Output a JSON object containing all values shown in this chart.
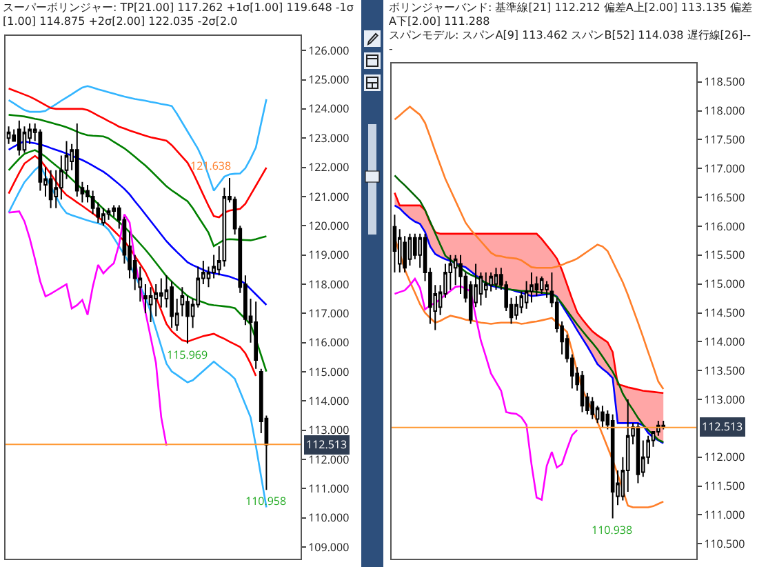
{
  "chart_data": [
    {
      "type": "candlestick",
      "title": "スーパーボリンジャー: TP[21.00] 117.262 +1σ[1.00] 119.648 -1σ[1.00] 114.875 +2σ[2.00] 122.035 -2σ[2.0",
      "categories": [
        null,
        null,
        null,
        null,
        null,
        null,
        null,
        null,
        null,
        null,
        null,
        null,
        null,
        null,
        null,
        null,
        null,
        null,
        null,
        null,
        null,
        null,
        null,
        null,
        null,
        null,
        null,
        null,
        null,
        null,
        null,
        null,
        null,
        null,
        null,
        null,
        null,
        null,
        null,
        null,
        null,
        null,
        null,
        null,
        null,
        null,
        null,
        null,
        null,
        null
      ],
      "ohlc": [
        [
          123.0,
          123.4,
          122.8,
          123.2
        ],
        [
          123.1,
          123.3,
          122.9,
          122.9
        ],
        [
          123.3,
          123.6,
          122.4,
          122.6
        ],
        [
          122.6,
          123.4,
          122.5,
          123.2
        ],
        [
          123.0,
          123.5,
          122.8,
          123.3
        ],
        [
          123.2,
          123.5,
          122.9,
          123.3
        ],
        [
          123.2,
          123.3,
          121.2,
          121.5
        ],
        [
          121.4,
          122.0,
          121.0,
          121.6
        ],
        [
          121.6,
          121.9,
          120.6,
          120.9
        ],
        [
          121.0,
          121.9,
          120.6,
          121.3
        ],
        [
          121.3,
          122.4,
          120.9,
          121.9
        ],
        [
          121.9,
          122.9,
          121.6,
          122.4
        ],
        [
          122.2,
          122.8,
          121.9,
          122.6
        ],
        [
          122.6,
          123.5,
          121.0,
          121.2
        ],
        [
          121.3,
          121.5,
          120.8,
          121.1
        ],
        [
          121.2,
          121.4,
          120.8,
          121.0
        ],
        [
          121.0,
          121.2,
          120.4,
          120.6
        ],
        [
          120.6,
          120.8,
          120.1,
          120.3
        ],
        [
          120.1,
          120.6,
          120.0,
          120.4
        ],
        [
          120.4,
          120.6,
          120.2,
          120.5
        ],
        [
          120.5,
          120.7,
          120.3,
          120.6
        ],
        [
          120.6,
          120.7,
          119.9,
          120.2
        ],
        [
          120.2,
          120.3,
          118.7,
          119.0
        ],
        [
          119.3,
          119.8,
          118.2,
          118.5
        ],
        [
          118.8,
          119.0,
          117.8,
          118.2
        ],
        [
          117.9,
          118.6,
          117.4,
          118.2
        ],
        [
          117.6,
          118.0,
          117.0,
          117.5
        ],
        [
          117.3,
          117.9,
          116.7,
          117.6
        ],
        [
          117.5,
          118.0,
          116.9,
          117.7
        ],
        [
          117.6,
          118.2,
          117.2,
          117.7
        ],
        [
          117.5,
          118.3,
          117.2,
          117.8
        ],
        [
          117.9,
          118.1,
          116.5,
          116.9
        ],
        [
          116.6,
          117.5,
          116.4,
          117.0
        ],
        [
          117.3,
          117.9,
          116.9,
          117.6
        ],
        [
          117.4,
          117.6,
          115.969,
          116.9
        ],
        [
          116.9,
          117.5,
          116.5,
          117.3
        ],
        [
          117.3,
          118.6,
          117.2,
          118.2
        ],
        [
          118.2,
          118.8,
          118.0,
          118.4
        ],
        [
          118.2,
          118.6,
          117.9,
          118.4
        ],
        [
          118.4,
          119.0,
          118.2,
          118.6
        ],
        [
          118.5,
          119.3,
          118.3,
          118.8
        ],
        [
          118.8,
          121.3,
          118.6,
          121.0
        ],
        [
          121.0,
          121.638,
          120.8,
          120.9
        ],
        [
          120.9,
          121.0,
          119.7,
          119.9
        ],
        [
          119.9,
          120.0,
          117.7,
          117.9
        ],
        [
          118.0,
          118.3,
          116.6,
          116.8
        ],
        [
          116.9,
          117.5,
          116.0,
          116.7
        ],
        [
          116.7,
          117.4,
          115.1,
          115.4
        ],
        [
          115.0,
          115.1,
          112.9,
          113.3
        ],
        [
          113.4,
          113.5,
          110.958,
          112.5
        ]
      ],
      "series": [
        {
          "type": "line",
          "color": "#33b5ff",
          "values": [
            124.3,
            124.19,
            124.07,
            123.96,
            123.9,
            123.9,
            123.9,
            123.93,
            124.05,
            124.16,
            124.28,
            124.39,
            124.5,
            124.62,
            124.73,
            124.78,
            124.73,
            124.67,
            124.62,
            124.57,
            124.52,
            124.47,
            124.42,
            124.38,
            124.34,
            124.31,
            124.28,
            124.24,
            124.21,
            124.17,
            124.14,
            124.1,
            123.83,
            123.53,
            123.23,
            122.93,
            122.63,
            122.24,
            121.72,
            121.2,
            121.44,
            121.68,
            121.76,
            121.78,
            121.79,
            121.97,
            122.3,
            122.68,
            123.51,
            124.33
          ]
        },
        {
          "type": "line",
          "color": "#ff0000",
          "values": [
            124.7,
            124.63,
            124.56,
            124.49,
            124.42,
            124.33,
            124.23,
            124.13,
            124.03,
            124.0,
            124.0,
            124.0,
            124.0,
            124.0,
            124.0,
            123.96,
            123.87,
            123.77,
            123.68,
            123.58,
            123.49,
            123.39,
            123.33,
            123.26,
            123.2,
            123.14,
            123.08,
            123.03,
            122.99,
            122.95,
            122.91,
            122.76,
            122.56,
            122.36,
            122.16,
            121.83,
            121.45,
            121.06,
            120.68,
            120.33,
            120.29,
            120.45,
            120.52,
            120.55,
            120.58,
            120.75,
            121.06,
            121.37,
            121.68,
            121.99
          ]
        },
        {
          "type": "line",
          "color": "#008000",
          "values": [
            123.8,
            123.78,
            123.76,
            123.74,
            123.7,
            123.66,
            123.63,
            123.58,
            123.53,
            123.48,
            123.43,
            123.37,
            123.3,
            123.22,
            123.15,
            123.1,
            123.08,
            123.07,
            123.06,
            122.99,
            122.87,
            122.76,
            122.65,
            122.51,
            122.36,
            122.21,
            122.06,
            121.89,
            121.71,
            121.53,
            121.35,
            121.21,
            121.09,
            120.96,
            120.84,
            120.6,
            120.32,
            120.04,
            119.76,
            119.3,
            119.41,
            119.52,
            119.54,
            119.53,
            119.52,
            119.51,
            119.5,
            119.54,
            119.59,
            119.64
          ]
        },
        {
          "type": "line",
          "color": "#0000ff",
          "values": [
            122.6,
            122.71,
            122.81,
            122.89,
            122.85,
            122.82,
            122.78,
            122.73,
            122.66,
            122.6,
            122.54,
            122.47,
            122.4,
            122.32,
            122.25,
            122.16,
            122.06,
            121.95,
            121.85,
            121.72,
            121.57,
            121.42,
            121.26,
            121.07,
            120.84,
            120.62,
            120.39,
            120.16,
            119.93,
            119.7,
            119.47,
            119.28,
            119.1,
            118.93,
            118.75,
            118.65,
            118.57,
            118.49,
            118.42,
            118.37,
            118.34,
            118.3,
            118.26,
            118.19,
            118.13,
            118.01,
            117.83,
            117.65,
            117.47,
            117.29
          ]
        },
        {
          "type": "line",
          "color": "#008000",
          "values": [
            121.9,
            122.1,
            122.29,
            122.46,
            122.53,
            122.59,
            122.49,
            122.36,
            122.21,
            122.06,
            121.92,
            121.76,
            121.59,
            121.42,
            121.25,
            121.08,
            120.92,
            120.75,
            120.58,
            120.42,
            120.27,
            120.12,
            119.96,
            119.78,
            119.58,
            119.38,
            119.18,
            118.96,
            118.73,
            118.5,
            118.27,
            118.09,
            117.92,
            117.76,
            117.6,
            117.5,
            117.44,
            117.38,
            117.31,
            117.28,
            117.26,
            117.24,
            117.22,
            117.18,
            116.99,
            116.81,
            116.62,
            116.11,
            115.56,
            115.01
          ]
        },
        {
          "type": "line",
          "color": "#ff0000",
          "values": [
            121.1,
            121.46,
            121.81,
            122.13,
            122.26,
            122.39,
            122.25,
            122.02,
            121.77,
            121.51,
            121.25,
            121.05,
            120.93,
            120.8,
            120.68,
            120.55,
            120.42,
            120.29,
            120.16,
            120.01,
            119.83,
            119.65,
            119.47,
            119.24,
            118.96,
            118.69,
            118.41,
            118.02,
            117.56,
            117.1,
            116.64,
            116.39,
            116.23,
            116.08,
            116.03,
            116.1,
            116.16,
            116.22,
            116.26,
            116.3,
            116.21,
            116.13,
            116.03,
            115.94,
            115.85,
            115.63,
            115.28,
            114.86,
            null,
            null
          ]
        },
        {
          "type": "line",
          "color": "#33b5ff",
          "values": [
            120.45,
            120.81,
            121.16,
            121.49,
            121.7,
            121.91,
            122.06,
            121.7,
            121.35,
            121.0,
            120.66,
            120.43,
            120.36,
            120.3,
            120.24,
            120.18,
            120.13,
            120.08,
            120.03,
            119.86,
            119.58,
            119.29,
            119.01,
            118.68,
            118.3,
            117.93,
            117.55,
            117.05,
            116.46,
            115.87,
            115.28,
            115.01,
            114.89,
            114.76,
            114.64,
            114.71,
            114.87,
            115.03,
            115.19,
            115.35,
            115.2,
            115.06,
            114.93,
            114.76,
            114.32,
            113.88,
            113.44,
            112.46,
            111.41,
            110.36
          ]
        },
        {
          "type": "line",
          "color": "#ff00ff",
          "values": [
            120.45,
            120.47,
            120.49,
            120.15,
            119.57,
            118.86,
            118.09,
            117.58,
            117.67,
            117.78,
            117.89,
            118.0,
            117.17,
            117.28,
            117.46,
            116.95,
            117.92,
            118.66,
            118.37,
            118.56,
            118.72,
            119.37,
            120.39,
            120.11,
            118.8,
            117.93,
            117.05,
            116.18,
            115.3,
            113.45,
            112.47,
            null,
            null,
            null,
            null,
            null,
            null,
            null,
            null,
            null,
            null,
            null,
            null,
            null,
            null,
            null,
            null,
            null,
            null,
            null
          ]
        }
      ],
      "ylim": [
        108.6,
        126.5
      ],
      "yticks": [
        {
          "value": 109,
          "label": "109.000"
        },
        {
          "value": 110,
          "label": "110.000"
        },
        {
          "value": 111,
          "label": "111.000"
        },
        {
          "value": 112,
          "label": "112.000"
        },
        {
          "value": 113,
          "label": "113.000"
        },
        {
          "value": 114,
          "label": "114.000"
        },
        {
          "value": 115,
          "label": "115.000"
        },
        {
          "value": 116,
          "label": "116.000"
        },
        {
          "value": 117,
          "label": "117.000"
        },
        {
          "value": 118,
          "label": "118.000"
        },
        {
          "value": 119,
          "label": "119.000"
        },
        {
          "value": 120,
          "label": "120.000"
        },
        {
          "value": 121,
          "label": "121.000"
        },
        {
          "value": 122,
          "label": "122.000"
        },
        {
          "value": 123,
          "label": "123.000"
        },
        {
          "value": 124,
          "label": "124.000"
        },
        {
          "value": 125,
          "label": "125.000"
        },
        {
          "value": 126,
          "label": "126.000"
        }
      ],
      "ref_lines": [
        {
          "axis": "y",
          "value": 112.513,
          "label": "112.513",
          "color": "#ff9933"
        }
      ],
      "annotations": [
        {
          "text": "121.638",
          "y": 121.638
        },
        {
          "text": "115.969",
          "y": 115.969
        },
        {
          "text": "110.958",
          "y": 110.958
        }
      ],
      "tick_labels": "y",
      "grid": false
    },
    {
      "type": "candlestick",
      "title": "ボリンジャーバンド: 基準線[21] 112.212 偏差A上[2.00] 113.135 偏差A下[2.00] 111.288",
      "subtitle": "スパンモデル: スパンA[9] 113.462 スパンB[52] 114.038 遅行線[26]---",
      "categories": [
        null,
        null,
        null,
        null,
        null,
        null,
        null,
        null,
        null,
        null,
        null,
        null,
        null,
        null,
        null,
        null,
        null,
        null,
        null,
        null,
        null,
        null,
        null,
        null,
        null,
        null,
        null,
        null,
        null,
        null,
        null,
        null,
        null,
        null,
        null,
        null,
        null,
        null,
        null,
        null,
        null,
        null,
        null,
        null,
        null,
        null,
        null,
        null,
        null,
        null,
        null,
        null,
        null,
        null
      ],
      "ohlc": [
        [
          115.99,
          116.2,
          115.2,
          115.57
        ],
        [
          115.35,
          115.95,
          115.2,
          115.8
        ],
        [
          115.72,
          115.83,
          115.2,
          115.28
        ],
        [
          115.43,
          115.87,
          115.32,
          115.8
        ],
        [
          115.8,
          115.87,
          115.43,
          115.5
        ],
        [
          115.5,
          115.87,
          115.28,
          115.8
        ],
        [
          115.8,
          115.87,
          115.05,
          115.2
        ],
        [
          115.2,
          115.28,
          114.31,
          114.6
        ],
        [
          114.53,
          114.98,
          114.2,
          114.83
        ],
        [
          114.6,
          114.98,
          114.46,
          114.86
        ],
        [
          114.83,
          115.35,
          114.76,
          115.2
        ],
        [
          115.2,
          115.5,
          114.9,
          115.35
        ],
        [
          115.28,
          115.5,
          114.98,
          115.43
        ],
        [
          115.35,
          115.5,
          114.83,
          115.13
        ],
        [
          115.13,
          115.2,
          114.68,
          114.76
        ],
        [
          114.98,
          115.05,
          114.31,
          114.38
        ],
        [
          114.68,
          115.35,
          114.6,
          114.98
        ],
        [
          114.83,
          115.2,
          114.63,
          115.13
        ],
        [
          114.9,
          115.2,
          114.76,
          115.0
        ],
        [
          114.98,
          115.2,
          114.87,
          115.13
        ],
        [
          115.0,
          115.28,
          114.9,
          115.16
        ],
        [
          115.16,
          115.28,
          114.9,
          114.98
        ],
        [
          114.98,
          115.05,
          114.53,
          114.6
        ],
        [
          114.64,
          114.76,
          114.31,
          114.42
        ],
        [
          114.46,
          114.79,
          114.38,
          114.64
        ],
        [
          114.6,
          114.87,
          114.49,
          114.79
        ],
        [
          114.68,
          115.05,
          114.57,
          114.87
        ],
        [
          114.87,
          115.2,
          114.68,
          114.98
        ],
        [
          115.0,
          115.13,
          114.79,
          114.9
        ],
        [
          114.9,
          115.13,
          114.83,
          115.09
        ],
        [
          114.9,
          115.05,
          114.76,
          114.98
        ],
        [
          114.87,
          115.2,
          114.6,
          114.68
        ],
        [
          114.68,
          114.76,
          114.16,
          114.23
        ],
        [
          114.27,
          114.35,
          113.78,
          114.0
        ],
        [
          114.05,
          114.12,
          113.64,
          113.71
        ],
        [
          113.71,
          113.78,
          113.19,
          113.41
        ],
        [
          113.45,
          113.56,
          113.15,
          113.26
        ],
        [
          113.41,
          113.49,
          112.78,
          112.89
        ],
        [
          113.04,
          113.11,
          112.74,
          112.81
        ],
        [
          112.96,
          113.04,
          112.66,
          112.74
        ],
        [
          112.66,
          112.89,
          112.59,
          112.85
        ],
        [
          112.78,
          112.89,
          112.52,
          112.63
        ],
        [
          112.74,
          112.81,
          112.48,
          112.56
        ],
        [
          112.63,
          112.74,
          110.938,
          111.4
        ],
        [
          111.32,
          111.77,
          111.17,
          111.55
        ],
        [
          111.32,
          112.0,
          111.25,
          111.77
        ],
        [
          111.77,
          113.0,
          111.4,
          112.37
        ],
        [
          112.37,
          112.59,
          112.22,
          112.52
        ],
        [
          112.52,
          112.59,
          111.55,
          111.7
        ],
        [
          111.74,
          112.29,
          111.66,
          112.0
        ],
        [
          112.0,
          112.37,
          111.88,
          112.29
        ],
        [
          112.29,
          112.44,
          112.18,
          112.44
        ],
        [
          112.44,
          112.63,
          112.37,
          112.55
        ],
        [
          112.55,
          112.63,
          112.48,
          112.52
        ]
      ],
      "series": [
        {
          "type": "line",
          "color": "#0000ff",
          "values": [
            116.36,
            116.31,
            116.22,
            116.14,
            116.08,
            116.04,
            115.9,
            115.65,
            115.52,
            115.47,
            115.43,
            115.4,
            115.36,
            115.32,
            115.29,
            115.22,
            115.15,
            115.08,
            115.01,
            114.97,
            114.95,
            114.93,
            114.91,
            114.9,
            114.87,
            114.85,
            114.82,
            114.79,
            114.8,
            114.81,
            114.82,
            114.83,
            114.78,
            114.63,
            114.49,
            114.35,
            114.2,
            114.06,
            113.92,
            113.77,
            113.61,
            113.53,
            113.46,
            113.37,
            112.59,
            112.59,
            112.59,
            112.59,
            112.59,
            112.55,
            112.42,
            112.34,
            112.29,
            112.24
          ]
        },
        {
          "type": "area",
          "color": "#ff0000",
          "values": [
            116.58,
            116.36,
            116.36,
            116.36,
            116.36,
            116.36,
            116.28,
            116.06,
            115.9,
            115.87,
            115.87,
            115.87,
            115.87,
            115.87,
            115.87,
            115.87,
            115.87,
            115.87,
            115.87,
            115.87,
            115.87,
            115.87,
            115.87,
            115.87,
            115.87,
            115.87,
            115.87,
            115.87,
            115.87,
            115.78,
            115.67,
            115.56,
            115.44,
            115.24,
            114.99,
            114.74,
            114.51,
            114.39,
            114.28,
            114.18,
            114.11,
            114.05,
            113.99,
            113.82,
            113.26,
            113.24,
            113.21,
            113.19,
            113.17,
            113.15,
            113.14,
            113.13,
            113.12,
            113.11
          ]
        },
        {
          "type": "line",
          "color": "#ff7f2a",
          "values": [
            117.85,
            117.92,
            118.0,
            118.07,
            118.0,
            117.93,
            117.79,
            117.55,
            117.3,
            117.06,
            116.82,
            116.63,
            116.44,
            116.25,
            116.06,
            115.94,
            115.84,
            115.74,
            115.64,
            115.54,
            115.49,
            115.48,
            115.46,
            115.45,
            115.44,
            115.41,
            115.35,
            115.29,
            115.28,
            115.28,
            115.28,
            115.28,
            115.3,
            115.33,
            115.37,
            115.4,
            115.44,
            115.5,
            115.56,
            115.62,
            115.68,
            115.65,
            115.57,
            115.39,
            115.21,
            115.03,
            114.81,
            114.57,
            114.33,
            114.08,
            113.82,
            113.57,
            113.31,
            113.18
          ]
        },
        {
          "type": "line",
          "color": "#ff7f2a",
          "values": [
            115.8,
            115.53,
            115.25,
            115.04,
            114.85,
            114.65,
            114.5,
            114.41,
            114.33,
            114.36,
            114.41,
            114.45,
            114.43,
            114.41,
            114.38,
            114.37,
            114.35,
            114.33,
            114.32,
            114.31,
            114.32,
            114.33,
            114.33,
            114.33,
            114.33,
            114.31,
            114.32,
            114.34,
            114.35,
            114.37,
            114.39,
            114.41,
            114.33,
            114.25,
            114.17,
            113.84,
            113.48,
            113.18,
            112.99,
            112.8,
            112.61,
            112.39,
            112.17,
            111.95,
            111.7,
            111.43,
            111.16,
            111.13,
            111.13,
            111.13,
            111.13,
            111.15,
            111.19,
            111.23
          ]
        },
        {
          "type": "line",
          "color": "#006400",
          "values": [
            116.88,
            116.79,
            116.71,
            116.62,
            116.53,
            116.44,
            116.28,
            116.08,
            115.88,
            115.68,
            115.49,
            115.42,
            115.35,
            115.28,
            115.21,
            115.16,
            115.12,
            115.07,
            115.02,
            114.99,
            114.97,
            114.94,
            114.92,
            114.9,
            114.89,
            114.88,
            114.88,
            114.87,
            114.86,
            114.85,
            114.84,
            114.83,
            114.77,
            114.66,
            114.54,
            114.42,
            114.3,
            114.19,
            114.08,
            113.98,
            113.87,
            113.74,
            113.61,
            113.48,
            113.31,
            113.1,
            112.95,
            112.82,
            112.68,
            112.56,
            112.47,
            112.39,
            112.3,
            112.26
          ]
        },
        {
          "type": "line",
          "color": "#ff00ff",
          "values": [
            114.83,
            114.86,
            114.89,
            114.98,
            115.09,
            114.93,
            114.56,
            114.63,
            114.67,
            114.74,
            114.81,
            114.88,
            114.95,
            114.96,
            114.92,
            114.87,
            114.43,
            114.02,
            113.74,
            113.45,
            113.3,
            113.15,
            112.78,
            112.76,
            112.75,
            112.69,
            112.56,
            111.87,
            111.3,
            111.26,
            111.85,
            112.09,
            111.82,
            111.88,
            112.14,
            112.38,
            112.47,
            null,
            null,
            null,
            null,
            null,
            null,
            null,
            null,
            null,
            null,
            null,
            null,
            null,
            null,
            null,
            null,
            null
          ]
        }
      ],
      "ylim": [
        110.24,
        118.82
      ],
      "yticks": [
        {
          "value": 110.5,
          "label": "110.500"
        },
        {
          "value": 111,
          "label": "111.000"
        },
        {
          "value": 111.5,
          "label": "111.500"
        },
        {
          "value": 112,
          "label": "112.000"
        },
        {
          "value": 113,
          "label": "113.000"
        },
        {
          "value": 113.5,
          "label": "113.500"
        },
        {
          "value": 114,
          "label": "114.000"
        },
        {
          "value": 114.5,
          "label": "114.500"
        },
        {
          "value": 115,
          "label": "115.000"
        },
        {
          "value": 115.5,
          "label": "115.500"
        },
        {
          "value": 116,
          "label": "116.000"
        },
        {
          "value": 116.5,
          "label": "116.500"
        },
        {
          "value": 117,
          "label": "117.000"
        },
        {
          "value": 117.5,
          "label": "117.500"
        },
        {
          "value": 118,
          "label": "118.000"
        },
        {
          "value": 118.5,
          "label": "118.500"
        }
      ],
      "ref_lines": [
        {
          "axis": "y",
          "value": 112.513,
          "label": "112.513",
          "color": "#ff9933"
        }
      ],
      "annotations": [
        {
          "text": "110.938",
          "y": 110.938
        }
      ],
      "tick_labels": "y",
      "grid": false
    }
  ]
}
